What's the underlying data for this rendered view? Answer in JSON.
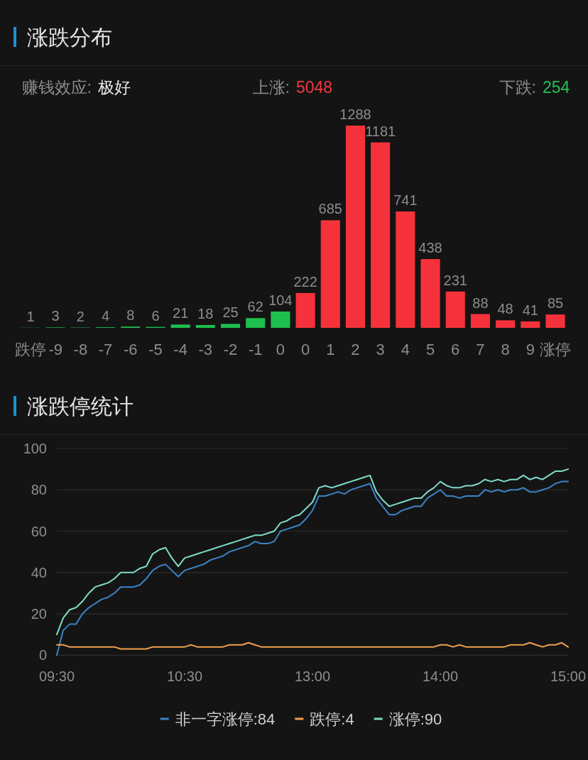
{
  "chart_data": [
    {
      "type": "bar",
      "title": "涨跌分布",
      "annotations": [
        "赚钱效应:",
        "极好",
        "上涨:",
        "5048",
        "下跌:",
        "254"
      ],
      "categories": [
        "跌停",
        "-9",
        "-8",
        "-7",
        "-6",
        "-5",
        "-4",
        "-3",
        "-2",
        "-1",
        "0",
        "0",
        "1",
        "2",
        "3",
        "4",
        "5",
        "6",
        "7",
        "8",
        "9",
        "涨停"
      ],
      "values": [
        1,
        3,
        2,
        4,
        8,
        6,
        21,
        18,
        25,
        62,
        104,
        222,
        685,
        1288,
        1181,
        741,
        438,
        231,
        88,
        48,
        41,
        85
      ],
      "colors": [
        "#1fbf4f",
        "#1fbf4f",
        "#1fbf4f",
        "#1fbf4f",
        "#1fbf4f",
        "#1fbf4f",
        "#1fbf4f",
        "#1fbf4f",
        "#1fbf4f",
        "#1fbf4f",
        "#1fbf4f",
        "#f5323b",
        "#f5323b",
        "#f5323b",
        "#f5323b",
        "#f5323b",
        "#f5323b",
        "#f5323b",
        "#f5323b",
        "#f5323b",
        "#f5323b",
        "#f5323b"
      ],
      "data_labels": true
    },
    {
      "type": "line",
      "title": "涨跌停统计",
      "categories": [
        "09:30",
        null,
        null,
        null,
        null,
        null,
        null,
        null,
        null,
        null,
        null,
        null,
        null,
        null,
        null,
        null,
        null,
        null,
        null,
        null,
        "10:30",
        null,
        null,
        null,
        null,
        null,
        null,
        null,
        null,
        null,
        null,
        null,
        null,
        null,
        null,
        null,
        null,
        null,
        null,
        null,
        "13:00",
        null,
        null,
        null,
        null,
        null,
        null,
        null,
        null,
        null,
        null,
        null,
        null,
        null,
        null,
        null,
        null,
        null,
        null,
        null,
        "14:00",
        null,
        null,
        null,
        null,
        null,
        null,
        null,
        null,
        null,
        null,
        null,
        null,
        null,
        null,
        null,
        null,
        null,
        null,
        null,
        "15:00"
      ],
      "ylim": [
        0,
        100
      ],
      "yticks": [
        0,
        20,
        40,
        60,
        80,
        100
      ],
      "grid": "y",
      "legend": "bottom",
      "series": [
        {
          "name": "非一字涨停:84",
          "color": "#3b84c6",
          "values": [
            0,
            12,
            15,
            15,
            20,
            23,
            25,
            27,
            28,
            30,
            33,
            33,
            33,
            34,
            37,
            41,
            43,
            44,
            41,
            38,
            41,
            42,
            43,
            44,
            46,
            47,
            48,
            50,
            51,
            52,
            53,
            55,
            54,
            54,
            55,
            60,
            61,
            62,
            63,
            66,
            70,
            77,
            77,
            78,
            79,
            78,
            80,
            81,
            82,
            83,
            76,
            72,
            68,
            68,
            70,
            71,
            72,
            72,
            76,
            78,
            80,
            77,
            77,
            76,
            77,
            77,
            77,
            80,
            79,
            80,
            79,
            80,
            80,
            81,
            79,
            79,
            80,
            81,
            83,
            84,
            84
          ]
        },
        {
          "name": "跌停:4",
          "color": "#f0a04b",
          "values": [
            5,
            5,
            4,
            4,
            4,
            4,
            4,
            4,
            4,
            4,
            3,
            3,
            3,
            3,
            3,
            4,
            4,
            4,
            4,
            4,
            4,
            5,
            4,
            4,
            4,
            4,
            4,
            5,
            5,
            5,
            6,
            5,
            4,
            4,
            4,
            4,
            4,
            4,
            4,
            4,
            4,
            4,
            4,
            4,
            4,
            4,
            4,
            4,
            4,
            4,
            4,
            4,
            4,
            4,
            4,
            4,
            4,
            4,
            4,
            4,
            5,
            5,
            4,
            5,
            4,
            4,
            4,
            4,
            4,
            4,
            4,
            5,
            5,
            5,
            6,
            5,
            4,
            5,
            5,
            6,
            4
          ]
        },
        {
          "name": "涨停:90",
          "color": "#7fdcc9",
          "values": [
            10,
            18,
            22,
            23,
            26,
            30,
            33,
            34,
            35,
            37,
            40,
            40,
            40,
            42,
            43,
            49,
            51,
            52,
            47,
            43,
            47,
            48,
            49,
            50,
            51,
            52,
            53,
            54,
            55,
            56,
            57,
            58,
            58,
            59,
            60,
            64,
            65,
            67,
            68,
            71,
            74,
            81,
            82,
            81,
            82,
            83,
            84,
            85,
            86,
            87,
            79,
            75,
            72,
            73,
            74,
            75,
            76,
            76,
            79,
            81,
            84,
            82,
            81,
            81,
            82,
            82,
            83,
            85,
            84,
            85,
            84,
            85,
            85,
            87,
            85,
            86,
            85,
            87,
            89,
            89,
            90
          ]
        }
      ]
    }
  ]
}
